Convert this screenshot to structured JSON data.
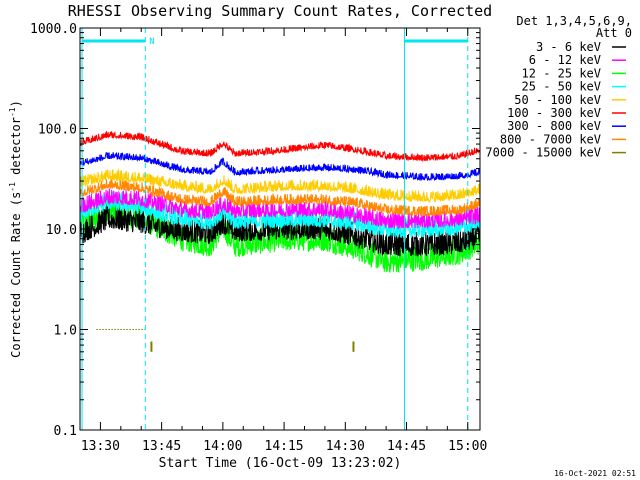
{
  "chart_data": {
    "type": "line",
    "title": "RHESSI Observing Summary Count Rates, Corrected",
    "xlabel": "Start Time (16-Oct-09 13:23:02)",
    "ylabel_main": "Corrected Count Rate (s",
    "ylabel_sup": "-1",
    "ylabel_end": " detector",
    "ylabel_tail": ")",
    "yscale": "log",
    "ylim": [
      0.1,
      1000
    ],
    "y_ticks": [
      {
        "value": 1000,
        "label": "1000.0"
      },
      {
        "value": 100,
        "label": "100.0"
      },
      {
        "value": 10,
        "label": "10.0"
      },
      {
        "value": 1,
        "label": "1.0"
      },
      {
        "value": 0.1,
        "label": "0.1"
      }
    ],
    "x_units": "minutes",
    "xlim": [
      805,
      903
    ],
    "x_ticks": [
      {
        "value": 810,
        "label": "13:30"
      },
      {
        "value": 825,
        "label": "13:45"
      },
      {
        "value": 840,
        "label": "14:00"
      },
      {
        "value": 855,
        "label": "14:15"
      },
      {
        "value": 870,
        "label": "14:30"
      },
      {
        "value": 885,
        "label": "14:45"
      },
      {
        "value": 900,
        "label": "15:00"
      }
    ],
    "legend": {
      "header_line1": "Det 1,3,4,5,6,9,",
      "header_line2": "Att 0",
      "placement": "right"
    },
    "series": [
      {
        "name": "3 - 6 keV",
        "color": "#000000",
        "noise": 0.45,
        "points": [
          [
            805,
            8.5
          ],
          [
            812,
            12
          ],
          [
            820,
            11
          ],
          [
            830,
            9
          ],
          [
            837,
            8.5
          ],
          [
            840,
            11
          ],
          [
            843,
            9
          ],
          [
            855,
            9.5
          ],
          [
            865,
            9.5
          ],
          [
            873,
            8
          ],
          [
            880,
            6.5
          ],
          [
            890,
            6.5
          ],
          [
            898,
            6.8
          ],
          [
            903,
            8
          ]
        ]
      },
      {
        "name": "6 - 12 keV",
        "color": "#ff00ff",
        "noise": 0.3,
        "points": [
          [
            805,
            16
          ],
          [
            812,
            20
          ],
          [
            820,
            19
          ],
          [
            830,
            15
          ],
          [
            837,
            14
          ],
          [
            840,
            17
          ],
          [
            843,
            14.5
          ],
          [
            855,
            15
          ],
          [
            865,
            15
          ],
          [
            873,
            13
          ],
          [
            880,
            11.5
          ],
          [
            890,
            11.5
          ],
          [
            898,
            12
          ],
          [
            903,
            13
          ]
        ]
      },
      {
        "name": "12 - 25 keV",
        "color": "#00ff00",
        "noise": 0.5,
        "points": [
          [
            805,
            10
          ],
          [
            812,
            14
          ],
          [
            820,
            12
          ],
          [
            830,
            7.5
          ],
          [
            837,
            6.5
          ],
          [
            840,
            10
          ],
          [
            843,
            6.5
          ],
          [
            855,
            7.5
          ],
          [
            865,
            7.5
          ],
          [
            873,
            6
          ],
          [
            880,
            4.5
          ],
          [
            890,
            4.8
          ],
          [
            898,
            5.5
          ],
          [
            903,
            7
          ]
        ]
      },
      {
        "name": "25 - 50 keV",
        "color": "#00ffff",
        "noise": 0.35,
        "points": [
          [
            805,
            14
          ],
          [
            812,
            18
          ],
          [
            820,
            16
          ],
          [
            830,
            12
          ],
          [
            837,
            11.5
          ],
          [
            840,
            14
          ],
          [
            843,
            11.5
          ],
          [
            855,
            12
          ],
          [
            865,
            12
          ],
          [
            873,
            11
          ],
          [
            880,
            9.5
          ],
          [
            890,
            9.5
          ],
          [
            898,
            10
          ],
          [
            903,
            11
          ]
        ]
      },
      {
        "name": "50 - 100 keV",
        "color": "#ffcc00",
        "noise": 0.2,
        "points": [
          [
            805,
            28
          ],
          [
            812,
            33
          ],
          [
            820,
            31
          ],
          [
            830,
            26
          ],
          [
            837,
            24
          ],
          [
            840,
            30
          ],
          [
            843,
            24
          ],
          [
            855,
            26
          ],
          [
            865,
            26
          ],
          [
            873,
            24
          ],
          [
            880,
            21
          ],
          [
            890,
            20
          ],
          [
            898,
            21
          ],
          [
            903,
            24
          ]
        ]
      },
      {
        "name": "100 - 300 keV",
        "color": "#ff0000",
        "noise": 0.12,
        "points": [
          [
            805,
            70
          ],
          [
            812,
            85
          ],
          [
            820,
            80
          ],
          [
            830,
            58
          ],
          [
            837,
            55
          ],
          [
            840,
            70
          ],
          [
            843,
            55
          ],
          [
            855,
            60
          ],
          [
            865,
            67
          ],
          [
            873,
            60
          ],
          [
            880,
            52
          ],
          [
            890,
            50
          ],
          [
            898,
            52
          ],
          [
            903,
            60
          ]
        ]
      },
      {
        "name": "300 - 800 keV",
        "color": "#0000ff",
        "noise": 0.12,
        "points": [
          [
            805,
            44
          ],
          [
            812,
            52
          ],
          [
            820,
            50
          ],
          [
            830,
            38
          ],
          [
            837,
            36
          ],
          [
            840,
            46
          ],
          [
            843,
            36
          ],
          [
            855,
            38
          ],
          [
            865,
            40
          ],
          [
            873,
            38
          ],
          [
            880,
            34
          ],
          [
            890,
            32
          ],
          [
            898,
            33
          ],
          [
            903,
            36
          ]
        ]
      },
      {
        "name": "800 - 7000 keV",
        "color": "#ff8800",
        "noise": 0.18,
        "points": [
          [
            805,
            22
          ],
          [
            812,
            27
          ],
          [
            820,
            25
          ],
          [
            830,
            19
          ],
          [
            837,
            18
          ],
          [
            840,
            23
          ],
          [
            843,
            18
          ],
          [
            855,
            19
          ],
          [
            865,
            19
          ],
          [
            873,
            17.5
          ],
          [
            880,
            15
          ],
          [
            890,
            14.5
          ],
          [
            898,
            15
          ],
          [
            903,
            17.5
          ]
        ]
      },
      {
        "name": "7000 - 15000 keV",
        "color": "#808000",
        "noise": 0,
        "points": [
          [
            809,
            1.0
          ],
          [
            821,
            1.0
          ]
        ]
      }
    ],
    "overlays": {
      "night_intervals": [
        [
          805.5,
          821
        ],
        [
          884.5,
          900
        ]
      ],
      "saa_marker_label": "N",
      "olive_ticks": [
        {
          "x": 822.5,
          "y_low": 0.6,
          "y_high": 0.76
        },
        {
          "x": 872,
          "y_low": 0.6,
          "y_high": 0.76
        }
      ],
      "overlay_color": "#00e5ee"
    },
    "footer_date": "16-Oct-2021 02:51"
  }
}
